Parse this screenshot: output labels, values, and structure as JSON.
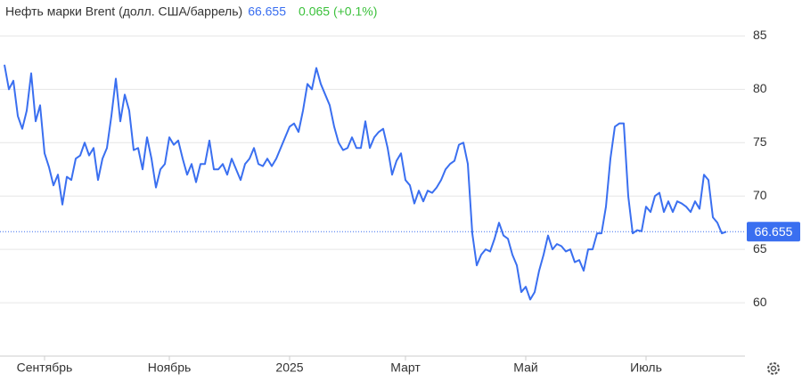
{
  "chart_data": {
    "type": "line",
    "title": "Нефть марки Brent (долл. США/баррель)",
    "change": "0.065 (+0.1%)",
    "color": "#3a6ff0",
    "change_color": "#3cc13c",
    "categories": [
      null,
      null,
      null,
      null,
      null,
      null,
      null,
      null,
      null,
      "Сентябрь",
      null,
      null,
      null,
      null,
      null,
      null,
      null,
      null,
      null,
      null,
      null,
      null,
      null,
      null,
      null,
      null,
      null,
      null,
      null,
      null,
      null,
      null,
      null,
      null,
      null,
      null,
      null,
      "Ноябрь",
      null,
      null,
      null,
      null,
      null,
      null,
      null,
      null,
      null,
      null,
      null,
      null,
      null,
      null,
      null,
      null,
      null,
      null,
      null,
      null,
      null,
      null,
      null,
      null,
      null,
      null,
      "2025",
      null,
      null,
      null,
      null,
      null,
      null,
      null,
      null,
      null,
      null,
      null,
      null,
      null,
      null,
      null,
      null,
      null,
      null,
      null,
      null,
      null,
      null,
      null,
      null,
      null,
      "Март",
      null,
      null,
      null,
      null,
      null,
      null,
      null,
      null,
      null,
      null,
      null,
      null,
      null,
      null,
      null,
      null,
      null,
      null,
      null,
      null,
      null,
      null,
      null,
      null,
      null,
      null,
      "Май",
      null,
      null,
      null,
      null,
      null,
      null,
      null,
      null,
      null,
      null,
      null,
      null,
      null,
      null,
      null,
      null,
      null,
      null,
      null,
      null,
      null,
      null,
      null,
      null,
      null,
      null,
      "Июль",
      null,
      null,
      null,
      null,
      null,
      null,
      null,
      null,
      null,
      null,
      null,
      null,
      null,
      null,
      null,
      null,
      null,
      null
    ],
    "values": [
      82.3,
      80,
      80.8,
      77.5,
      76.3,
      78,
      81.5,
      77,
      78.5,
      74,
      72.7,
      71,
      72,
      69.2,
      71.8,
      71.5,
      73.5,
      73.8,
      75,
      73.8,
      74.5,
      71.5,
      73.5,
      74.5,
      77.5,
      81,
      77,
      79.5,
      78,
      74.3,
      74.5,
      72.5,
      75.5,
      73.5,
      70.8,
      72.5,
      73,
      75.5,
      74.8,
      75.2,
      73.5,
      72,
      73,
      71.3,
      73,
      73,
      75.2,
      72.5,
      72.5,
      73,
      72,
      73.5,
      72.5,
      71.5,
      73,
      73.5,
      74.5,
      73,
      72.8,
      73.5,
      72.8,
      73.5,
      74.5,
      75.5,
      76.5,
      76.8,
      76,
      78,
      80.5,
      80,
      82,
      80.5,
      79.5,
      78.5,
      76.5,
      75,
      74.3,
      74.5,
      75.5,
      74.5,
      74.5,
      77,
      74.5,
      75.5,
      76,
      76.3,
      74.5,
      72,
      73.3,
      74,
      71.5,
      71,
      69.3,
      70.5,
      69.5,
      70.5,
      70.3,
      70.8,
      71.5,
      72.5,
      73,
      73.3,
      74.8,
      75,
      73,
      66.5,
      63.5,
      64.5,
      65,
      64.8,
      66,
      67.5,
      66.3,
      66,
      64.5,
      63.5,
      61,
      61.5,
      60.3,
      61,
      63,
      64.5,
      66.3,
      65,
      65.5,
      65.3,
      64.8,
      65,
      63.8,
      64,
      63,
      65,
      65,
      66.5,
      66.5,
      69,
      73.5,
      76.5,
      76.8,
      76.8,
      70,
      66.5,
      66.8,
      66.7,
      69,
      68.5,
      70,
      70.3,
      68.5,
      69.5,
      68.5,
      69.5,
      69.3,
      69,
      68.5,
      69.5,
      68.8,
      72,
      71.5,
      68,
      67.5,
      66.5,
      66.655
    ],
    "ylim": [
      55,
      86.7
    ],
    "yticks": [
      60,
      65,
      70,
      75,
      80,
      85
    ],
    "grid": true
  }
}
